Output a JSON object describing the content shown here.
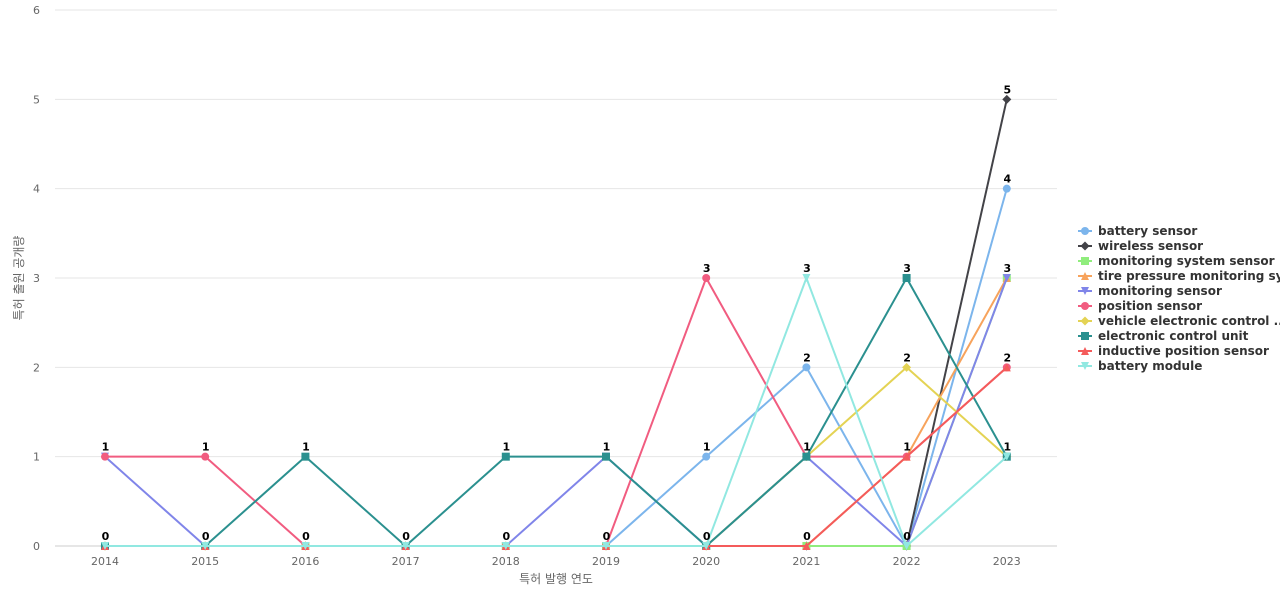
{
  "chart_data": {
    "type": "line",
    "title": "",
    "xlabel": "특허 발행 연도",
    "ylabel": "특허 출원 공개량",
    "categories": [
      "2014",
      "2015",
      "2016",
      "2017",
      "2018",
      "2019",
      "2020",
      "2021",
      "2022",
      "2023"
    ],
    "ylim": [
      0,
      6
    ],
    "yticks": [
      0,
      1,
      2,
      3,
      4,
      5,
      6
    ],
    "grid": "horizontal",
    "legend_position": "right",
    "series": [
      {
        "name": "battery sensor",
        "color": "#7cb5ec",
        "marker": "circle",
        "values": [
          0,
          0,
          0,
          0,
          0,
          0,
          1,
          2,
          0,
          4
        ]
      },
      {
        "name": "wireless sensor",
        "color": "#434348",
        "marker": "diamond",
        "values": [
          0,
          0,
          0,
          0,
          0,
          0,
          0,
          0,
          0,
          5
        ]
      },
      {
        "name": "monitoring system sensor",
        "color": "#90ed7d",
        "marker": "square",
        "values": [
          0,
          0,
          0,
          0,
          0,
          0,
          0,
          0,
          0,
          3
        ]
      },
      {
        "name": "tire pressure monitoring sy...",
        "color": "#f7a35c",
        "marker": "triangle",
        "values": [
          0,
          0,
          0,
          0,
          0,
          0,
          0,
          0,
          1,
          3
        ]
      },
      {
        "name": "monitoring sensor",
        "color": "#8085e9",
        "marker": "triangle-down",
        "values": [
          1,
          0,
          0,
          0,
          0,
          1,
          0,
          1,
          0,
          3
        ]
      },
      {
        "name": "position sensor",
        "color": "#f15c80",
        "marker": "circle",
        "values": [
          1,
          1,
          0,
          0,
          0,
          0,
          3,
          1,
          1,
          2
        ]
      },
      {
        "name": "vehicle electronic control ...",
        "color": "#e4d354",
        "marker": "diamond",
        "values": [
          0,
          0,
          0,
          0,
          0,
          0,
          0,
          1,
          2,
          1
        ]
      },
      {
        "name": "electronic control unit",
        "color": "#2b908f",
        "marker": "square",
        "values": [
          0,
          0,
          1,
          0,
          1,
          1,
          0,
          1,
          3,
          1
        ]
      },
      {
        "name": "inductive position sensor",
        "color": "#f45b5b",
        "marker": "triangle",
        "values": [
          0,
          0,
          0,
          0,
          0,
          0,
          0,
          0,
          1,
          2
        ]
      },
      {
        "name": "battery module",
        "color": "#91e8e1",
        "marker": "triangle-down",
        "values": [
          0,
          0,
          0,
          0,
          0,
          0,
          0,
          3,
          0,
          1
        ]
      }
    ],
    "data_labels": [
      {
        "category": "2014",
        "value": 1,
        "text": "1"
      },
      {
        "category": "2014",
        "value": 0,
        "text": "0"
      },
      {
        "category": "2015",
        "value": 1,
        "text": "1"
      },
      {
        "category": "2015",
        "value": 0,
        "text": "0"
      },
      {
        "category": "2016",
        "value": 1,
        "text": "1"
      },
      {
        "category": "2016",
        "value": 0,
        "text": "0"
      },
      {
        "category": "2017",
        "value": 0,
        "text": "0"
      },
      {
        "category": "2018",
        "value": 1,
        "text": "1"
      },
      {
        "category": "2018",
        "value": 0,
        "text": "0"
      },
      {
        "category": "2019",
        "value": 1,
        "text": "1"
      },
      {
        "category": "2019",
        "value": 0,
        "text": "0"
      },
      {
        "category": "2020",
        "value": 3,
        "text": "3"
      },
      {
        "category": "2020",
        "value": 1,
        "text": "1"
      },
      {
        "category": "2020",
        "value": 0,
        "text": "0"
      },
      {
        "category": "2021",
        "value": 3,
        "text": "3"
      },
      {
        "category": "2021",
        "value": 2,
        "text": "2"
      },
      {
        "category": "2021",
        "value": 1,
        "text": "1"
      },
      {
        "category": "2021",
        "value": 0,
        "text": "0"
      },
      {
        "category": "2022",
        "value": 3,
        "text": "3"
      },
      {
        "category": "2022",
        "value": 2,
        "text": "2"
      },
      {
        "category": "2022",
        "value": 1,
        "text": "1"
      },
      {
        "category": "2022",
        "value": 0,
        "text": "0"
      },
      {
        "category": "2023",
        "value": 5,
        "text": "5"
      },
      {
        "category": "2023",
        "value": 4,
        "text": "4"
      },
      {
        "category": "2023",
        "value": 3,
        "text": "3"
      },
      {
        "category": "2023",
        "value": 2,
        "text": "2"
      },
      {
        "category": "2023",
        "value": 1,
        "text": "1"
      }
    ]
  }
}
